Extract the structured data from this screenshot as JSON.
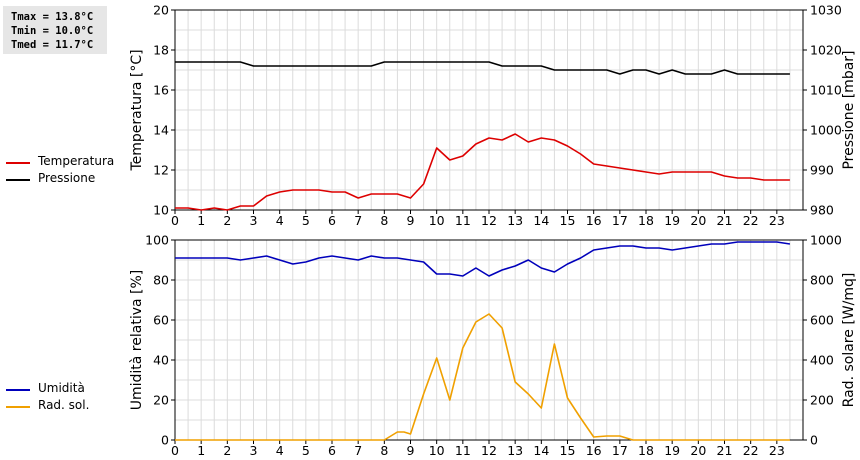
{
  "stats": {
    "tmax": "Tmax = 13.8°C",
    "tmin": "Tmin = 10.0°C",
    "tmed": "Tmed = 11.7°C"
  },
  "legend_top": [
    {
      "label": "Temperatura",
      "color": "#dd0000"
    },
    {
      "label": "Pressione",
      "color": "#000000"
    }
  ],
  "legend_bottom": [
    {
      "label": "Umidità",
      "color": "#0000bb"
    },
    {
      "label": "Rad. sol.",
      "color": "#f0a000"
    }
  ],
  "chart_data": [
    {
      "type": "line",
      "xlim": [
        0,
        24
      ],
      "xticks": [
        0,
        1,
        2,
        3,
        4,
        5,
        6,
        7,
        8,
        9,
        10,
        11,
        12,
        13,
        14,
        15,
        16,
        17,
        18,
        19,
        20,
        21,
        22,
        23
      ],
      "ylabel": "Temperatura [°C]",
      "ylim": [
        10,
        20
      ],
      "yticks": [
        10,
        12,
        14,
        16,
        18,
        20
      ],
      "y2label": "Pressione [mbar]",
      "y2lim": [
        980,
        1030
      ],
      "y2ticks": [
        980,
        990,
        1000,
        1010,
        1020,
        1030
      ],
      "grid": true,
      "series": [
        {
          "name": "Temperatura",
          "axis": "left",
          "color": "#dd0000",
          "x": [
            0,
            0.5,
            1,
            1.5,
            2,
            2.5,
            3,
            3.5,
            4,
            4.5,
            5,
            5.5,
            6,
            6.5,
            7,
            7.5,
            8,
            8.5,
            9,
            9.5,
            10,
            10.5,
            11,
            11.5,
            12,
            12.5,
            13,
            13.5,
            14,
            14.5,
            15,
            15.5,
            16,
            16.5,
            17,
            17.5,
            18,
            18.5,
            19,
            19.5,
            20,
            20.5,
            21,
            21.5,
            22,
            22.5,
            23,
            23.5
          ],
          "y": [
            10.1,
            10.1,
            10.0,
            10.1,
            10.0,
            10.2,
            10.2,
            10.7,
            10.9,
            11.0,
            11.0,
            11.0,
            10.9,
            10.9,
            10.6,
            10.8,
            10.8,
            10.8,
            10.6,
            11.3,
            13.1,
            12.5,
            12.7,
            13.3,
            13.6,
            13.5,
            13.8,
            13.4,
            13.6,
            13.5,
            13.2,
            12.8,
            12.3,
            12.2,
            12.1,
            12.0,
            11.9,
            11.8,
            11.9,
            11.9,
            11.9,
            11.9,
            11.7,
            11.6,
            11.6,
            11.5,
            11.5,
            11.5
          ]
        },
        {
          "name": "Pressione",
          "axis": "right",
          "color": "#000000",
          "x": [
            0,
            0.5,
            1,
            1.5,
            2,
            2.5,
            3,
            3.5,
            4,
            4.5,
            5,
            5.5,
            6,
            6.5,
            7,
            7.5,
            8,
            8.5,
            9,
            9.5,
            10,
            10.5,
            11,
            11.5,
            12,
            12.5,
            13,
            13.5,
            14,
            14.5,
            15,
            15.5,
            16,
            16.5,
            17,
            17.5,
            18,
            18.5,
            19,
            19.5,
            20,
            20.5,
            21,
            21.5,
            22,
            22.5,
            23,
            23.5
          ],
          "y": [
            1017,
            1017,
            1017,
            1017,
            1017,
            1017,
            1016,
            1016,
            1016,
            1016,
            1016,
            1016,
            1016,
            1016,
            1016,
            1016,
            1017,
            1017,
            1017,
            1017,
            1017,
            1017,
            1017,
            1017,
            1017,
            1016,
            1016,
            1016,
            1016,
            1015,
            1015,
            1015,
            1015,
            1015,
            1014,
            1015,
            1015,
            1014,
            1015,
            1014,
            1014,
            1014,
            1015,
            1014,
            1014,
            1014,
            1014,
            1014
          ]
        }
      ]
    },
    {
      "type": "line",
      "xlim": [
        0,
        24
      ],
      "xticks": [
        0,
        1,
        2,
        3,
        4,
        5,
        6,
        7,
        8,
        9,
        10,
        11,
        12,
        13,
        14,
        15,
        16,
        17,
        18,
        19,
        20,
        21,
        22,
        23
      ],
      "ylabel": "Umidità relativa [%]",
      "ylim": [
        0,
        100
      ],
      "yticks": [
        0,
        20,
        40,
        60,
        80,
        100
      ],
      "y2label": "Rad. solare [W/mq]",
      "y2lim": [
        0,
        1000
      ],
      "y2ticks": [
        0,
        200,
        400,
        600,
        800,
        1000
      ],
      "grid": true,
      "series": [
        {
          "name": "Umidità",
          "axis": "left",
          "color": "#0000bb",
          "x": [
            0,
            0.5,
            1,
            1.5,
            2,
            2.5,
            3,
            3.5,
            4,
            4.5,
            5,
            5.5,
            6,
            6.5,
            7,
            7.5,
            8,
            8.5,
            9,
            9.5,
            10,
            10.5,
            11,
            11.5,
            12,
            12.5,
            13,
            13.5,
            14,
            14.5,
            15,
            15.5,
            16,
            16.5,
            17,
            17.5,
            18,
            18.5,
            19,
            19.5,
            20,
            20.5,
            21,
            21.5,
            22,
            22.5,
            23,
            23.5
          ],
          "y": [
            91,
            91,
            91,
            91,
            91,
            90,
            91,
            92,
            90,
            88,
            89,
            91,
            92,
            91,
            90,
            92,
            91,
            91,
            90,
            89,
            83,
            83,
            82,
            86,
            82,
            85,
            87,
            90,
            86,
            84,
            88,
            91,
            95,
            96,
            97,
            97,
            96,
            96,
            95,
            96,
            97,
            98,
            98,
            99,
            99,
            99,
            99,
            98
          ]
        },
        {
          "name": "Rad. sol.",
          "axis": "right",
          "color": "#f0a000",
          "x": [
            0,
            0.5,
            1,
            1.5,
            2,
            2.5,
            3,
            3.5,
            4,
            4.5,
            5,
            5.5,
            6,
            6.5,
            7,
            7.5,
            8,
            8.5,
            8.75,
            9,
            9.5,
            10,
            10.5,
            11,
            11.5,
            12,
            12.5,
            13,
            13.5,
            14,
            14.5,
            15,
            15.5,
            16,
            16.5,
            17,
            17.5,
            18,
            18.5,
            19,
            19.5,
            20,
            20.5,
            21,
            21.5,
            22,
            22.5,
            23,
            23.5
          ],
          "y": [
            0,
            0,
            0,
            0,
            0,
            0,
            0,
            0,
            0,
            0,
            0,
            0,
            0,
            0,
            0,
            0,
            0,
            40,
            40,
            30,
            230,
            410,
            200,
            460,
            590,
            630,
            560,
            290,
            230,
            160,
            480,
            210,
            110,
            15,
            20,
            20,
            0,
            0,
            0,
            0,
            0,
            0,
            0,
            0,
            0,
            0,
            0,
            0,
            0
          ]
        }
      ]
    }
  ]
}
